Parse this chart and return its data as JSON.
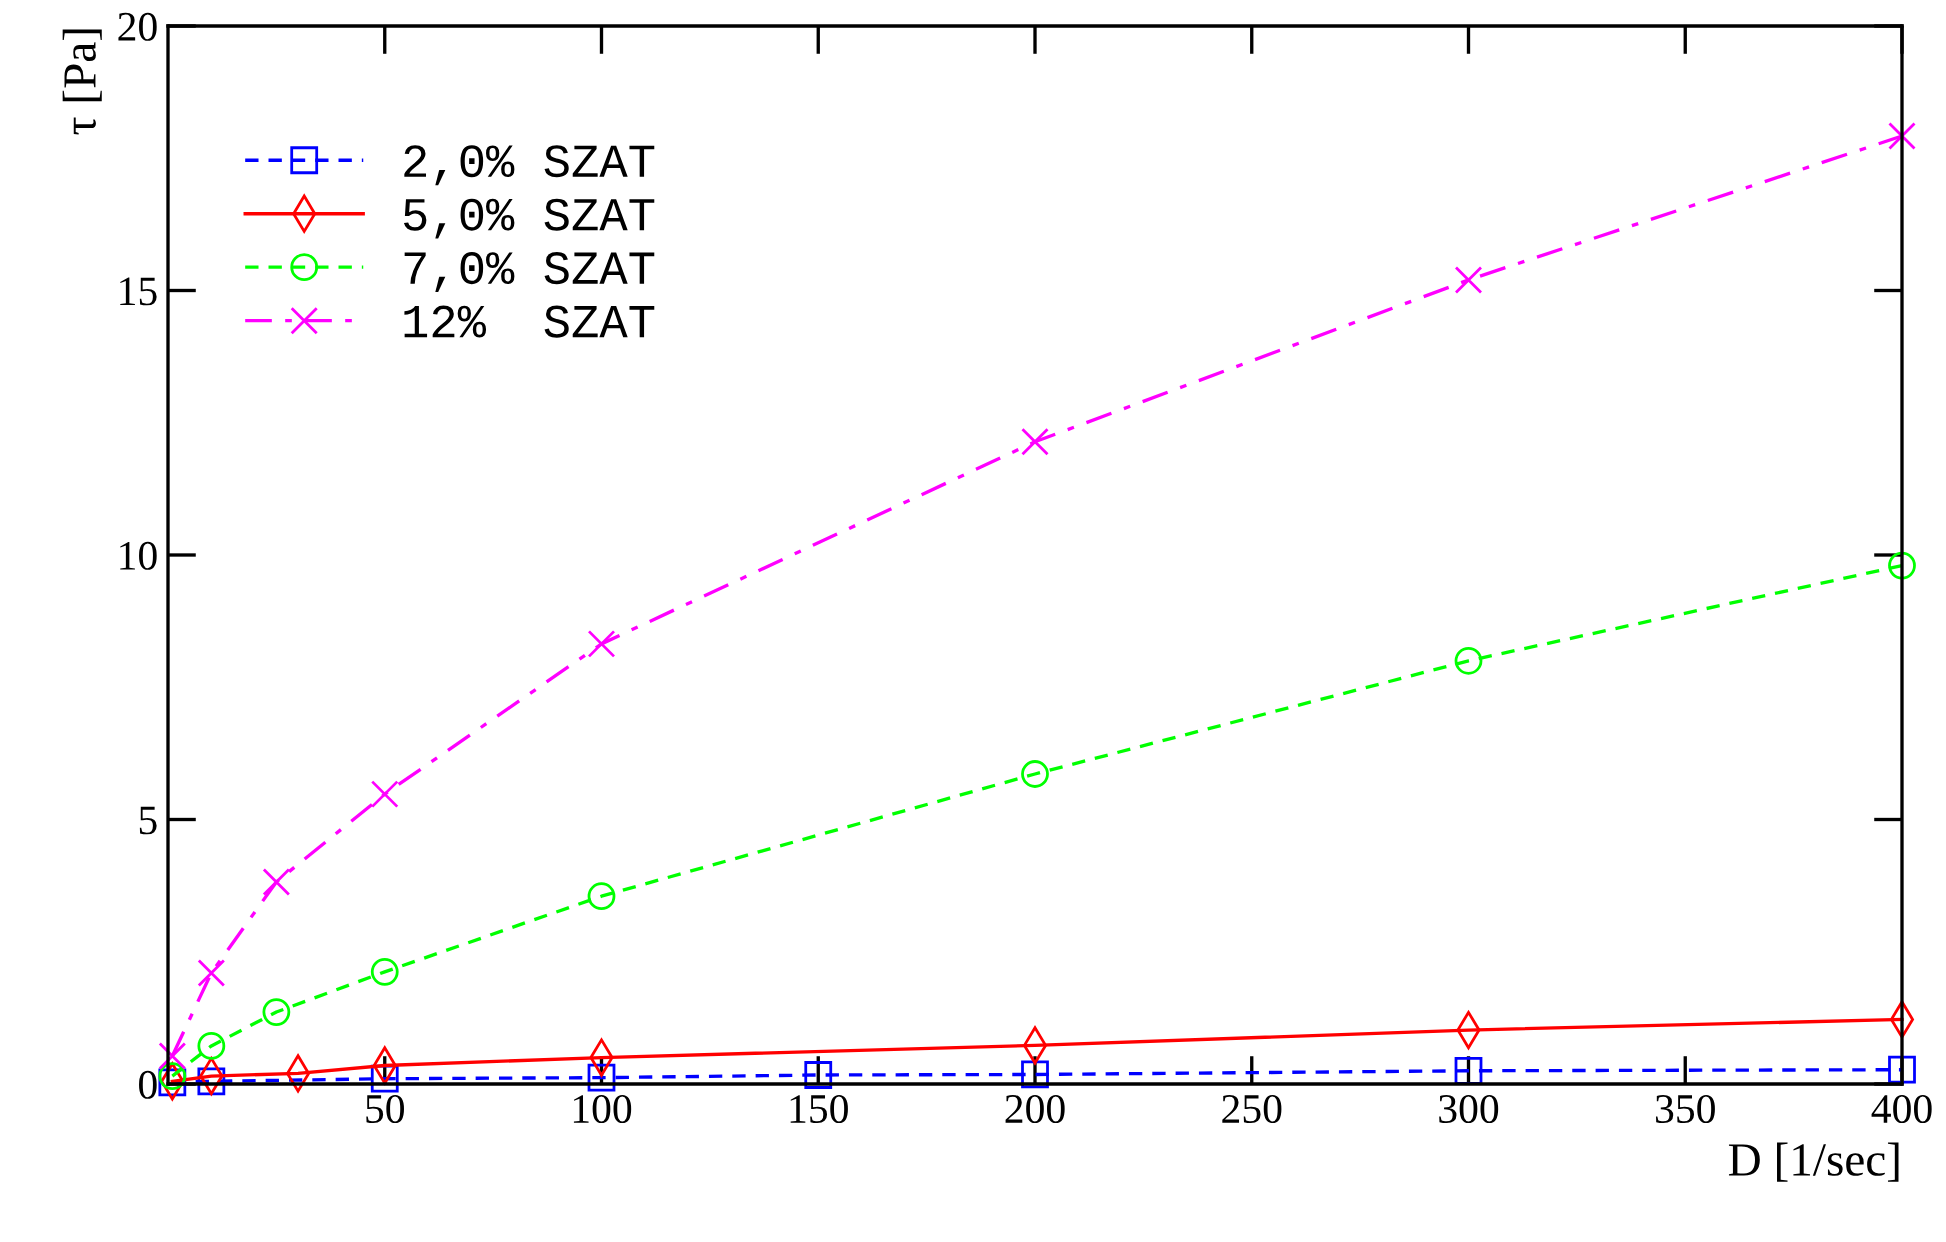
{
  "chart_data": {
    "type": "line",
    "xlabel": "D [1/sec]",
    "ylabel": "τ [Pa]",
    "xlim": [
      0,
      400
    ],
    "ylim": [
      0,
      20
    ],
    "xticks": [
      50,
      100,
      150,
      200,
      250,
      300,
      350,
      400
    ],
    "yticks": [
      0,
      5,
      10,
      15,
      20
    ],
    "grid": false,
    "legend": "top left",
    "series": [
      {
        "name": "2,0% SZAT",
        "color": "#0000ff",
        "marker": "square",
        "line_style": "dashed",
        "x": [
          1,
          10,
          50,
          100,
          150,
          200,
          300,
          400
        ],
        "values": [
          0.03,
          0.05,
          0.1,
          0.12,
          0.17,
          0.18,
          0.25,
          0.27
        ]
      },
      {
        "name": "5,0% SZAT",
        "color": "#ff0000",
        "marker": "diamond",
        "line_style": "solid",
        "x": [
          1,
          10,
          30,
          50,
          100,
          200,
          300,
          400
        ],
        "values": [
          0.05,
          0.15,
          0.2,
          0.35,
          0.5,
          0.73,
          1.02,
          1.22
        ]
      },
      {
        "name": "7,0% SZAT",
        "color": "#00ff00",
        "marker": "circle",
        "line_style": "dashed",
        "x": [
          1,
          10,
          25,
          50,
          100,
          200,
          300,
          400
        ],
        "values": [
          0.15,
          0.72,
          1.36,
          2.12,
          3.55,
          5.86,
          8.0,
          9.8
        ]
      },
      {
        "name": "12%  SZAT",
        "color": "#ff00ff",
        "marker": "cross",
        "line_style": "dashdot",
        "x": [
          1,
          10,
          25,
          50,
          100,
          200,
          300,
          400
        ],
        "values": [
          0.53,
          2.1,
          3.82,
          5.48,
          8.32,
          12.14,
          15.2,
          17.92
        ]
      }
    ]
  }
}
